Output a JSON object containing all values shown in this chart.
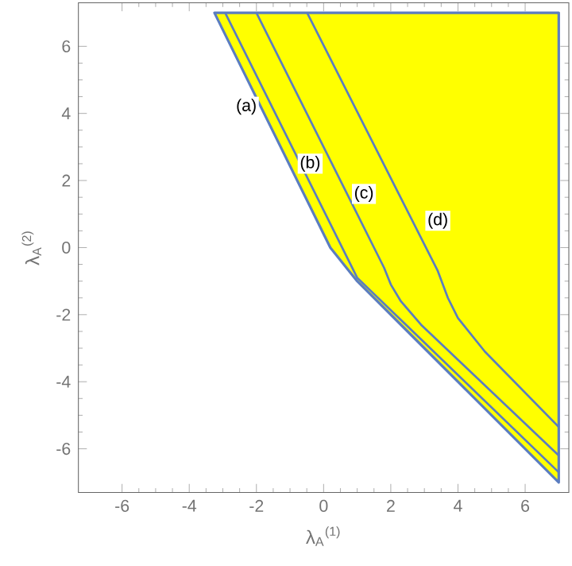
{
  "chart_data": {
    "type": "area",
    "xlabel": "λ$_{A}$$^{(1)}$",
    "ylabel": "λ$_{A}$$^{(2)}$",
    "xlim": [
      -7.3,
      7.3
    ],
    "ylim": [
      -7.3,
      7.3
    ],
    "xticks": [
      -6,
      -4,
      -2,
      0,
      2,
      4,
      6
    ],
    "yticks": [
      -6,
      -4,
      -2,
      0,
      2,
      4,
      6
    ],
    "series": [
      {
        "color": "#ffff00",
        "x": [
          -3.25,
          0.2,
          1,
          7,
          7
        ],
        "values": [
          7,
          0,
          -1,
          -7,
          7
        ]
      },
      {
        "type": "line",
        "color": "#5b7dc0",
        "x": [
          -2.93,
          1,
          7
        ],
        "values": [
          7,
          -0.9,
          -6.7
        ]
      },
      {
        "type": "line",
        "color": "#5b7dc0",
        "x": [
          -2,
          1.8,
          2,
          2.3,
          2.9,
          7
        ],
        "values": [
          7,
          -0.6,
          -1.1,
          -1.6,
          -2.3,
          -6.2
        ]
      },
      {
        "type": "line",
        "color": "#5b7dc0",
        "x": [
          -0.49,
          3.4,
          3.7,
          4,
          4.8,
          7
        ],
        "values": [
          7,
          -0.7,
          -1.5,
          -2.1,
          -3.1,
          -5.35
        ]
      }
    ],
    "annotations": [
      {
        "text": "(a)",
        "x": -2.3,
        "y": 4.2
      },
      {
        "text": "(b)",
        "x": -0.4,
        "y": 2.5
      },
      {
        "text": "(c)",
        "x": 1.2,
        "y": 1.6
      },
      {
        "text": "(d)",
        "x": 3.4,
        "y": 0.8
      }
    ]
  }
}
